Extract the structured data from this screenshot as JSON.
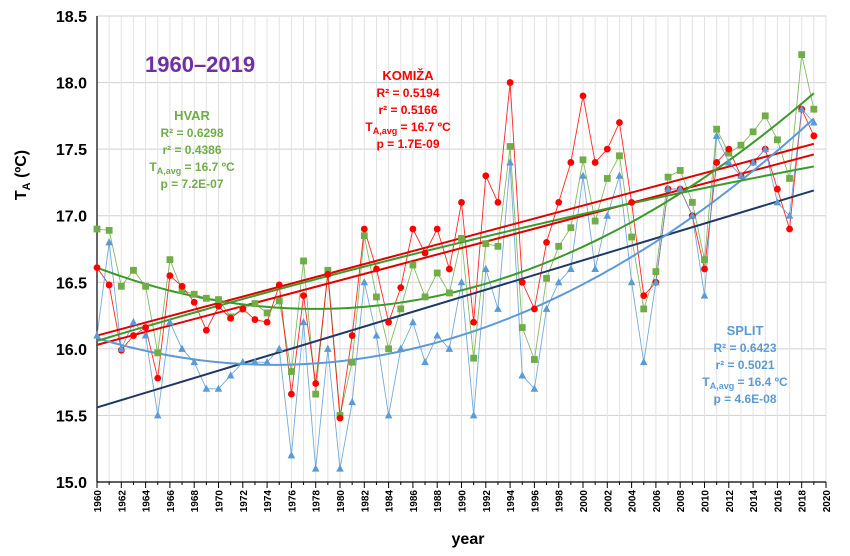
{
  "chart_data": {
    "type": "line",
    "period_title": "1960–2019",
    "xlabel": "year",
    "ylabel": "T",
    "ylabel_sub": "A",
    "ylabel_unit": " (ºC)",
    "xlim": [
      1960,
      2020
    ],
    "ylim": [
      15.0,
      18.5
    ],
    "y_ticks": [
      "15.0",
      "15.5",
      "16.0",
      "16.5",
      "17.0",
      "17.5",
      "18.0",
      "18.5"
    ],
    "x_ticks": [
      "1960",
      "1962",
      "1964",
      "1966",
      "1968",
      "1970",
      "1972",
      "1974",
      "1976",
      "1978",
      "1980",
      "1982",
      "1984",
      "1986",
      "1988",
      "1990",
      "1992",
      "1994",
      "1996",
      "1998",
      "2000",
      "2002",
      "2004",
      "2006",
      "2008",
      "2010",
      "2012",
      "2014",
      "2016",
      "2018",
      "2020"
    ],
    "grid": true,
    "colors": {
      "hvar": "#70ad47",
      "komiza": "#ff0000",
      "split": "#5b9bd5",
      "split_linear": "#1f3864",
      "komiza_linear": "#e00000",
      "hvar_poly": "#3a9a2a"
    },
    "years": [
      1960,
      1961,
      1962,
      1963,
      1964,
      1965,
      1966,
      1967,
      1968,
      1969,
      1970,
      1971,
      1972,
      1973,
      1974,
      1975,
      1976,
      1977,
      1978,
      1979,
      1980,
      1981,
      1982,
      1983,
      1984,
      1985,
      1986,
      1987,
      1988,
      1989,
      1990,
      1991,
      1992,
      1993,
      1994,
      1995,
      1996,
      1997,
      1998,
      1999,
      2000,
      2001,
      2002,
      2003,
      2004,
      2005,
      2006,
      2007,
      2008,
      2009,
      2010,
      2011,
      2012,
      2013,
      2014,
      2015,
      2016,
      2017,
      2018,
      2019
    ],
    "series": [
      {
        "name": "HVAR",
        "marker": "square",
        "values": [
          16.9,
          16.89,
          16.47,
          16.59,
          16.47,
          15.97,
          16.67,
          16.44,
          16.41,
          16.38,
          16.37,
          16.24,
          16.3,
          16.34,
          16.27,
          16.36,
          15.83,
          16.66,
          15.66,
          16.59,
          15.5,
          15.9,
          16.85,
          16.39,
          16.0,
          16.3,
          16.63,
          16.39,
          16.57,
          16.42,
          16.83,
          15.93,
          16.79,
          16.77,
          17.52,
          16.16,
          15.92,
          16.53,
          16.77,
          16.91,
          17.42,
          16.96,
          17.28,
          17.45,
          16.84,
          16.3,
          16.58,
          17.29,
          17.34,
          17.1,
          16.67,
          17.65,
          17.47,
          17.53,
          17.63,
          17.75,
          17.57,
          17.28,
          18.21,
          17.8
        ]
      },
      {
        "name": "KOMIŽA",
        "marker": "circle",
        "values": [
          16.61,
          16.48,
          15.99,
          16.1,
          16.16,
          15.78,
          16.55,
          16.47,
          16.35,
          16.14,
          16.32,
          16.23,
          16.3,
          16.22,
          16.2,
          16.48,
          15.66,
          16.4,
          15.74,
          16.56,
          15.48,
          16.1,
          16.9,
          16.6,
          16.2,
          16.46,
          16.9,
          16.72,
          16.9,
          16.6,
          17.1,
          16.2,
          17.3,
          17.1,
          18.0,
          16.5,
          16.3,
          16.8,
          17.1,
          17.4,
          17.9,
          17.4,
          17.5,
          17.7,
          17.1,
          16.4,
          16.5,
          17.2,
          17.2,
          17.0,
          16.6,
          17.4,
          17.5,
          17.3,
          17.4,
          17.5,
          17.2,
          16.9,
          17.8,
          17.6
        ]
      },
      {
        "name": "SPLIT",
        "marker": "triangle",
        "values": [
          16.1,
          16.8,
          16.0,
          16.2,
          16.1,
          15.5,
          16.2,
          16.0,
          15.9,
          15.7,
          15.7,
          15.8,
          15.9,
          15.9,
          15.9,
          16.0,
          15.2,
          16.2,
          15.1,
          16.0,
          15.1,
          15.6,
          16.5,
          16.1,
          15.5,
          16.0,
          16.2,
          15.9,
          16.1,
          16.0,
          16.5,
          15.5,
          16.6,
          16.3,
          17.4,
          15.8,
          15.7,
          16.3,
          16.5,
          16.6,
          17.3,
          16.6,
          17.0,
          17.3,
          16.5,
          15.9,
          16.5,
          17.2,
          17.2,
          17.0,
          16.4,
          17.6,
          17.4,
          17.3,
          17.4,
          17.5,
          17.1,
          17.0,
          17.8,
          17.7
        ]
      }
    ],
    "trend_lines": [
      {
        "name": "SPLIT linear",
        "kind": "linear",
        "from": [
          1960,
          15.56
        ],
        "to": [
          2019,
          17.19
        ]
      },
      {
        "name": "KOMIŽA linear",
        "kind": "linear",
        "from": [
          1960,
          16.03
        ],
        "to": [
          2019,
          17.46
        ]
      },
      {
        "name": "HVAR linear",
        "kind": "linear",
        "from": [
          1960,
          16.1
        ],
        "to": [
          2019,
          17.54
        ]
      },
      {
        "name": "SPLIT poly",
        "kind": "quadratic",
        "points": [
          [
            1960,
            16.08
          ],
          [
            1975,
            15.88
          ],
          [
            2019,
            17.73
          ]
        ]
      },
      {
        "name": "KOMIŽA poly",
        "kind": "quadratic",
        "points": [
          [
            1960,
            16.06
          ],
          [
            1990,
            16.8
          ],
          [
            2019,
            17.37
          ]
        ]
      },
      {
        "name": "HVAR poly",
        "kind": "quadratic",
        "points": [
          [
            1960,
            16.61
          ],
          [
            1978,
            16.3
          ],
          [
            2019,
            17.92
          ]
        ]
      }
    ],
    "annotations": [
      {
        "name": "HVAR",
        "color": "#70ad47",
        "lines": [
          "R² = 0.6298",
          "r² = 0.4386",
          "T",
          "A,avg",
          " = 16.7 ºC",
          "p = 7.2E-07"
        ]
      },
      {
        "name": "KOMIŽA",
        "color": "#ff0000",
        "lines": [
          "R² = 0.5194",
          "r² = 0.5166",
          "T",
          "A,avg",
          " = 16.7 ºC",
          "p = 1.7E-09"
        ]
      },
      {
        "name": "SPLIT",
        "color": "#5b9bd5",
        "lines": [
          "R² = 0.6423",
          "r² = 0.5021",
          "T",
          "A,avg",
          " = 16.4 ºC",
          "p = 4.6E-08"
        ]
      }
    ],
    "title_color": "#7030a0"
  }
}
